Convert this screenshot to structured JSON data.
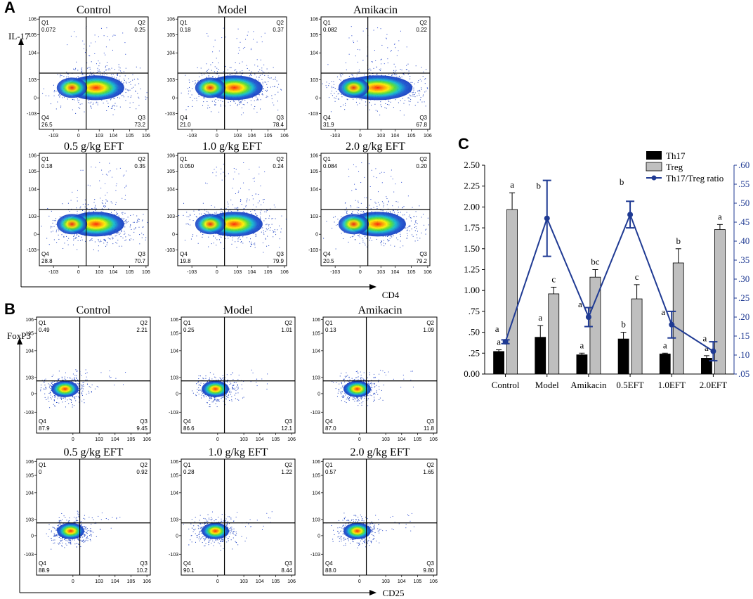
{
  "panel_letters": {
    "a": "A",
    "b": "B",
    "c": "C"
  },
  "panelA": {
    "y_axis_label": "IL-17",
    "x_axis_label": "CD4",
    "plots": [
      {
        "title": "Control",
        "q": [
          {
            "name": "Q1",
            "value": "0.072"
          },
          {
            "name": "Q2",
            "value": "0.25"
          },
          {
            "name": "Q4",
            "value": "26.5"
          },
          {
            "name": "Q3",
            "value": "73.2"
          }
        ]
      },
      {
        "title": "Model",
        "q": [
          {
            "name": "Q1",
            "value": "0.18"
          },
          {
            "name": "Q2",
            "value": "0.37"
          },
          {
            "name": "Q4",
            "value": "21.0"
          },
          {
            "name": "Q3",
            "value": "78.4"
          }
        ]
      },
      {
        "title": "Amikacin",
        "q": [
          {
            "name": "Q1",
            "value": "0.082"
          },
          {
            "name": "Q2",
            "value": "0.22"
          },
          {
            "name": "Q4",
            "value": "31.9"
          },
          {
            "name": "Q3",
            "value": "67.8"
          }
        ]
      },
      {
        "title": "0.5 g/kg EFT",
        "q": [
          {
            "name": "Q1",
            "value": "0.18"
          },
          {
            "name": "Q2",
            "value": "0.35"
          },
          {
            "name": "Q4",
            "value": "28.8"
          },
          {
            "name": "Q3",
            "value": "70.7"
          }
        ]
      },
      {
        "title": "1.0 g/kg EFT",
        "q": [
          {
            "name": "Q1",
            "value": "0.050"
          },
          {
            "name": "Q2",
            "value": "0.24"
          },
          {
            "name": "Q4",
            "value": "19.8"
          },
          {
            "name": "Q3",
            "value": "79.9"
          }
        ]
      },
      {
        "title": "2.0 g/kg EFT",
        "q": [
          {
            "name": "Q1",
            "value": "0.084"
          },
          {
            "name": "Q2",
            "value": "0.20"
          },
          {
            "name": "Q4",
            "value": "20.5"
          },
          {
            "name": "Q3",
            "value": "79.2"
          }
        ]
      }
    ]
  },
  "panelB": {
    "y_axis_label": "FoxP3",
    "x_axis_label": "CD25",
    "plots": [
      {
        "title": "Control",
        "q": [
          {
            "name": "Q1",
            "value": "0.49"
          },
          {
            "name": "Q2",
            "value": "2.21"
          },
          {
            "name": "Q4",
            "value": "87.9"
          },
          {
            "name": "Q3",
            "value": "9.45"
          }
        ]
      },
      {
        "title": "Model",
        "q": [
          {
            "name": "Q1",
            "value": "0.25"
          },
          {
            "name": "Q2",
            "value": "1.01"
          },
          {
            "name": "Q4",
            "value": "86.6"
          },
          {
            "name": "Q3",
            "value": "12.1"
          }
        ]
      },
      {
        "title": "Amikacin",
        "q": [
          {
            "name": "Q1",
            "value": "0.13"
          },
          {
            "name": "Q2",
            "value": "1.09"
          },
          {
            "name": "Q4",
            "value": "87.0"
          },
          {
            "name": "Q3",
            "value": "11.8"
          }
        ]
      },
      {
        "title": "0.5 g/kg EFT",
        "q": [
          {
            "name": "Q1",
            "value": "0"
          },
          {
            "name": "Q2",
            "value": "0.92"
          },
          {
            "name": "Q4",
            "value": "88.9"
          },
          {
            "name": "Q3",
            "value": "10.2"
          }
        ]
      },
      {
        "title": "1.0 g/kg EFT",
        "q": [
          {
            "name": "Q1",
            "value": "0.28"
          },
          {
            "name": "Q2",
            "value": "1.22"
          },
          {
            "name": "Q4",
            "value": "90.1"
          },
          {
            "name": "Q3",
            "value": "8.44"
          }
        ]
      },
      {
        "title": "2.0 g/kg EFT",
        "q": [
          {
            "name": "Q1",
            "value": "0.57"
          },
          {
            "name": "Q2",
            "value": "1.65"
          },
          {
            "name": "Q4",
            "value": "88.0"
          },
          {
            "name": "Q3",
            "value": "9.80"
          }
        ]
      }
    ]
  },
  "colors": {
    "th17": "#000000",
    "treg": "#bfbfbf",
    "ratio": "#1f3a93",
    "right_axis": "#1f3a93"
  },
  "chart_data": {
    "type": "bar",
    "categories": [
      "Control",
      "Model",
      "Amikacin",
      "0.5EFT",
      "1.0EFT",
      "2.0EFT"
    ],
    "legend": [
      "Th17",
      "Treg",
      "Th17/Treg ratio"
    ],
    "ylim": [
      0,
      2.5
    ],
    "yticks": [
      "0.00",
      ".25",
      ".50",
      ".75",
      "1.00",
      "1.25",
      "1.50",
      "1.75",
      "2.00",
      "2.25",
      "2.50"
    ],
    "y2lim": [
      0.05,
      0.6
    ],
    "y2ticks": [
      ".05",
      ".10",
      ".15",
      ".20",
      ".25",
      ".30",
      ".35",
      ".40",
      ".45",
      ".50",
      ".55",
      ".60"
    ],
    "series": [
      {
        "name": "Th17",
        "values": [
          0.27,
          0.44,
          0.23,
          0.42,
          0.24,
          0.19
        ],
        "errors": [
          0.02,
          0.14,
          0.02,
          0.08,
          0.01,
          0.03
        ],
        "letters": [
          "a",
          "a",
          "a",
          "b",
          "a",
          "a"
        ]
      },
      {
        "name": "Treg",
        "values": [
          1.97,
          0.96,
          1.16,
          0.9,
          1.33,
          1.73
        ],
        "errors": [
          0.2,
          0.08,
          0.09,
          0.17,
          0.17,
          0.06
        ],
        "letters": [
          "a",
          "c",
          "bc",
          "c",
          "b",
          "a"
        ]
      },
      {
        "name": "Th17/Treg ratio",
        "axis": "right",
        "values": [
          0.135,
          0.46,
          0.2,
          0.47,
          0.18,
          0.11
        ],
        "errors": [
          0.005,
          0.1,
          0.025,
          0.035,
          0.035,
          0.025
        ],
        "letters": [
          "a",
          "b",
          "a",
          "b",
          "a",
          "a"
        ]
      }
    ]
  }
}
